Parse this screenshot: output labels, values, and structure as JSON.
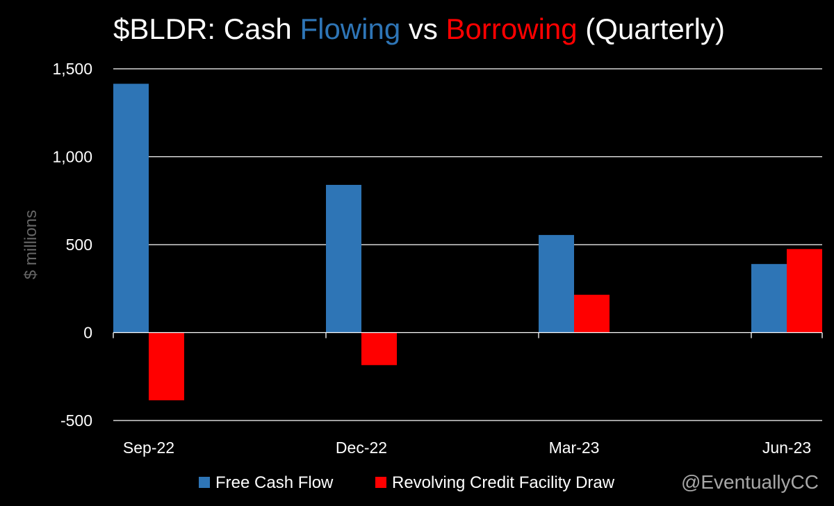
{
  "title_parts": [
    {
      "text": "$BLDR: Cash ",
      "color": "#ffffff"
    },
    {
      "text": "Flowing",
      "color": "#2e75b6"
    },
    {
      "text": " vs ",
      "color": "#ffffff"
    },
    {
      "text": "Borrowing",
      "color": "#ff0000"
    },
    {
      "text": " (Quarterly)",
      "color": "#ffffff"
    }
  ],
  "watermark": "@EventuallyCC",
  "chart_data": {
    "type": "bar",
    "title": "$BLDR: Cash Flowing vs Borrowing (Quarterly)",
    "xlabel": "",
    "ylabel": "$ millions",
    "categories": [
      "Sep-22",
      "Dec-22",
      "Mar-23",
      "Jun-23"
    ],
    "series": [
      {
        "name": "Free Cash Flow",
        "color": "#2e75b6",
        "values": [
          1415,
          840,
          555,
          390
        ]
      },
      {
        "name": "Revolving Credit Facility Draw",
        "color": "#ff0000",
        "values": [
          -385,
          -185,
          215,
          475
        ]
      }
    ],
    "ylim": [
      -500,
      1500
    ],
    "yticks": [
      -500,
      0,
      500,
      1000,
      1500
    ],
    "ytick_labels": [
      "-500",
      "0",
      "500",
      "1,000",
      "1,500"
    ],
    "grid": true,
    "legend_position": "bottom"
  }
}
